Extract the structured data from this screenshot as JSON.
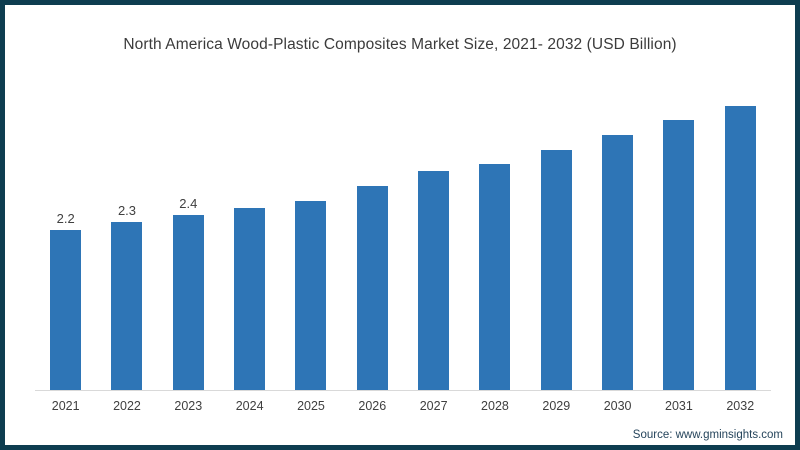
{
  "header": {
    "title": "North America Wood-Plastic Composites Market Size, 2021- 2032 (USD Billion)"
  },
  "footer": {
    "source_text": "Source: www.gminsights.com"
  },
  "colors": {
    "bar": "#2e75b6",
    "frame_border": "#0e3d50",
    "axis_line": "#d9d9d9",
    "title_text": "#3b3b3b",
    "tick_text": "#404040",
    "source_text": "#26455c"
  },
  "chart_data": {
    "type": "bar",
    "title": "North America Wood-Plastic Composites Market Size, 2021- 2032 (USD Billion)",
    "categories": [
      "2021",
      "2022",
      "2023",
      "2024",
      "2025",
      "2026",
      "2027",
      "2028",
      "2029",
      "2030",
      "2031",
      "2032"
    ],
    "values": [
      2.2,
      2.3,
      2.4,
      2.5,
      2.6,
      2.8,
      3.0,
      3.1,
      3.3,
      3.5,
      3.7,
      3.9
    ],
    "data_labels": [
      "2.2",
      "2.3",
      "2.4",
      "",
      "",
      "",
      "",
      "",
      "",
      "",
      "",
      ""
    ],
    "xlabel": "",
    "ylabel": "",
    "ylim": [
      0,
      4.2
    ],
    "grid": false,
    "legend": false,
    "y_axis_shown": false,
    "baseline_shown": true
  }
}
